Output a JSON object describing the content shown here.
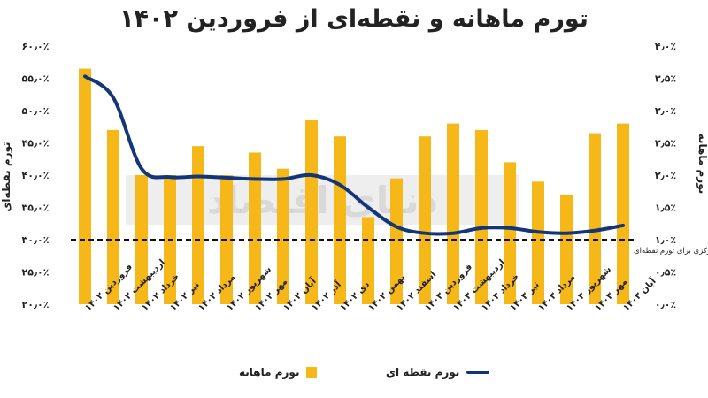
{
  "chart_data": {
    "type": "bar",
    "title": "تورم ماهانه و نقطه‌ای از فروردین ۱۴۰۲",
    "categories": [
      "فروردین ۱۴۰۲",
      "اردیبهشت ۱۴۰۲",
      "خرداد ۱۴۰۲",
      "تیر ۱۴۰۲",
      "مرداد ۱۴۰۲",
      "شهریور ۱۴۰۲",
      "مهر ۱۴۰۲",
      "آبان ۱۴۰۲",
      "آذر ۱۴۰۲",
      "دی ۱۴۰۲",
      "بهمن ۱۴۰۲",
      "اسفند ۱۴۰۲",
      "فروردین ۱۴۰۳",
      "اردیبهشت ۱۴۰۳",
      "خرداد ۱۴۰۳",
      "تیر ۱۴۰۳",
      "مرداد ۱۴۰۳",
      "شهریور ۱۴۰۳",
      "مهر ۱۴۰۳",
      "آبان ۱۴۰۳"
    ],
    "series": [
      {
        "name": "تورم ماهانه",
        "axis": "right",
        "color": "#f5b818",
        "values": [
          3.65,
          2.7,
          2.0,
          2.0,
          2.45,
          2.0,
          2.35,
          2.1,
          2.85,
          2.6,
          1.35,
          1.95,
          2.6,
          2.8,
          2.7,
          2.2,
          1.9,
          1.7,
          2.65,
          2.8
        ]
      },
      {
        "name": "تورم نقطه ای",
        "axis": "left",
        "color": "#13357a",
        "type": "line",
        "values": [
          55.3,
          52.0,
          41.0,
          39.7,
          39.8,
          39.6,
          39.4,
          39.4,
          40.0,
          38.5,
          35.0,
          32.0,
          31.0,
          31.0,
          31.8,
          31.8,
          31.2,
          31.0,
          31.4,
          32.2
        ]
      }
    ],
    "left_axis": {
      "label": "تورم نقطه‌ای",
      "ylim": [
        20,
        60
      ],
      "ticks": [
        "۲۰٫۰٪",
        "۲۵٫۰٪",
        "۳۰٫۰٪",
        "۳۵٫۰٪",
        "۴۰٫۰٪",
        "۴۵٫۰٪",
        "۵۰٫۰٪",
        "۵۵٫۰٪",
        "۶۰٫۰٪"
      ]
    },
    "right_axis": {
      "label": "تورم ماهانه",
      "ylim": [
        0,
        4
      ],
      "ticks": [
        "۰٫۰٪",
        "۰٫۵٪",
        "۱٫۰٪",
        "۱٫۵٪",
        "۲٫۰٪",
        "۲٫۵٪",
        "۳٫۰٪",
        "۳٫۵٪",
        "۴٫۰٪"
      ]
    },
    "target_line": {
      "value": 30,
      "axis": "left",
      "label": "هدفگذاری بانک مرکزی برای تورم نقطه‌ای"
    },
    "grid": false,
    "legend_position": "bottom"
  },
  "watermark": "دنیای اقتصاد",
  "colors": {
    "bar": "#f5b818",
    "line": "#13357a"
  }
}
